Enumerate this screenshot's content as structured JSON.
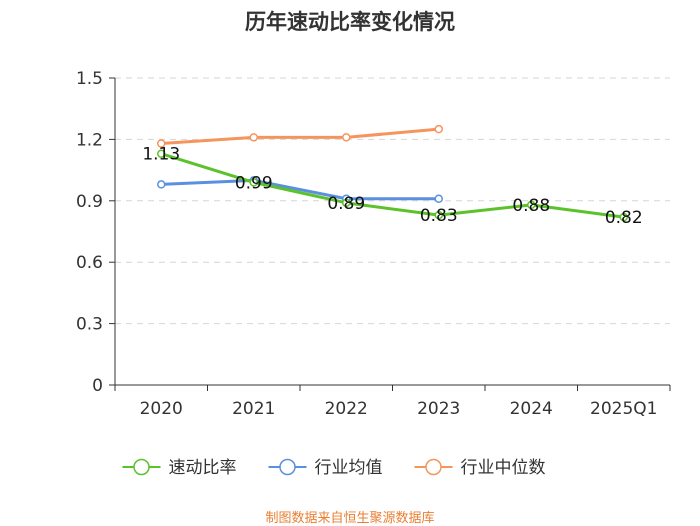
{
  "chart_data": {
    "type": "line",
    "title": "历年速动比率变化情况",
    "categories": [
      "2020",
      "2021",
      "2022",
      "2023",
      "2024",
      "2025Q1"
    ],
    "ylim": [
      0,
      1.5
    ],
    "yticks": [
      "0",
      "0.3",
      "0.6",
      "0.9",
      "1.2",
      "1.5"
    ],
    "grid": true,
    "legend_position": "bottom",
    "series": [
      {
        "name": "速动比率",
        "color": "#5cc22b",
        "values": [
          1.13,
          0.99,
          0.89,
          0.83,
          0.88,
          0.82
        ],
        "labels": [
          "1.13",
          "0.99",
          "0.89",
          "0.83",
          "0.88",
          "0.82"
        ]
      },
      {
        "name": "行业均值",
        "color": "#5b8fe0",
        "values": [
          0.98,
          1.0,
          0.91,
          0.91,
          null,
          null
        ]
      },
      {
        "name": "行业中位数",
        "color": "#f5955d",
        "values": [
          1.18,
          1.21,
          1.21,
          1.25,
          null,
          null
        ]
      }
    ]
  },
  "source": {
    "text": "制图数据来自恒生聚源数据库",
    "color": "#e87f33"
  }
}
